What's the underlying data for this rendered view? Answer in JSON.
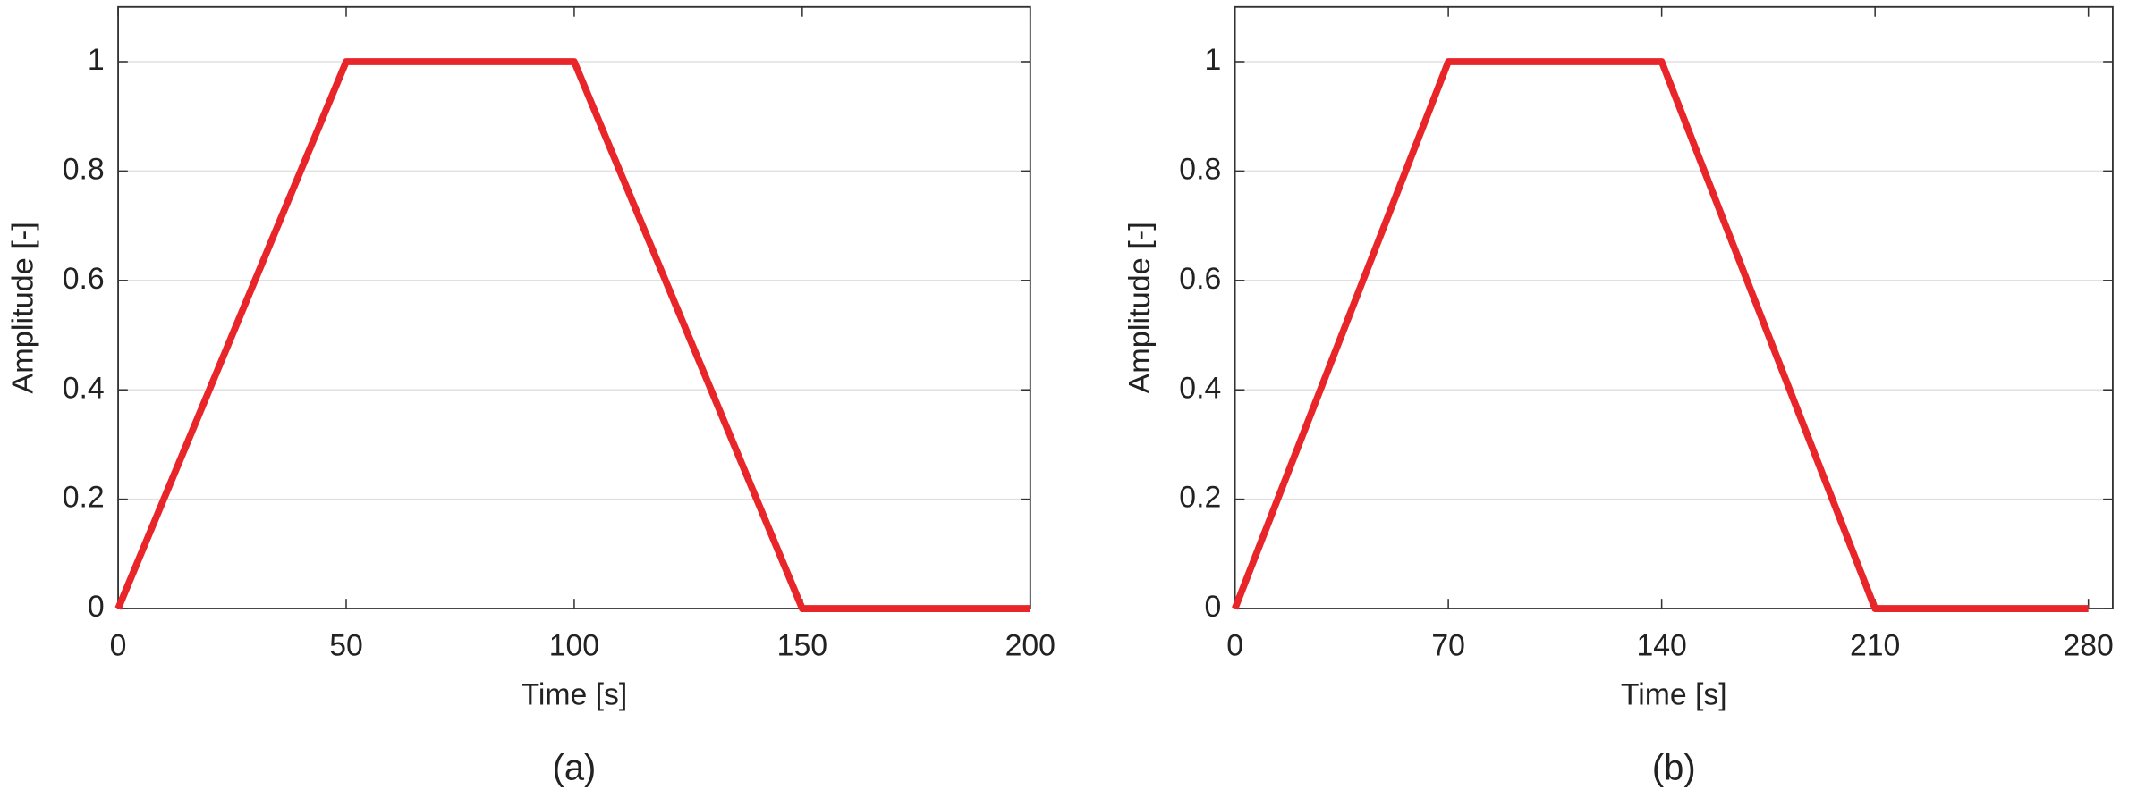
{
  "chart_data": [
    {
      "type": "line",
      "caption": "(a)",
      "x_label": "Time [s]",
      "y_label": "Amplitude [-]",
      "x": [
        0,
        50,
        100,
        150,
        200
      ],
      "values": [
        0,
        1,
        1,
        0,
        0
      ],
      "color": "#e8262a",
      "xlim": [
        0,
        200
      ],
      "ylim": [
        0,
        1.1
      ],
      "xticks": [
        0,
        50,
        100,
        150,
        200
      ],
      "yticks": [
        0,
        0.2,
        0.4,
        0.6,
        0.8,
        1
      ],
      "grid": true
    },
    {
      "type": "line",
      "caption": "(b)",
      "x_label": "Time [s]",
      "y_label": "Amplitude [-]",
      "x": [
        0,
        70,
        140,
        210,
        280
      ],
      "values": [
        0,
        1,
        1,
        0,
        0
      ],
      "color": "#e8262a",
      "xlim": [
        0,
        288
      ],
      "ylim": [
        0,
        1.1
      ],
      "xticks": [
        0,
        70,
        140,
        210,
        280
      ],
      "yticks": [
        0,
        0.2,
        0.4,
        0.6,
        0.8,
        1
      ],
      "grid": true
    }
  ]
}
